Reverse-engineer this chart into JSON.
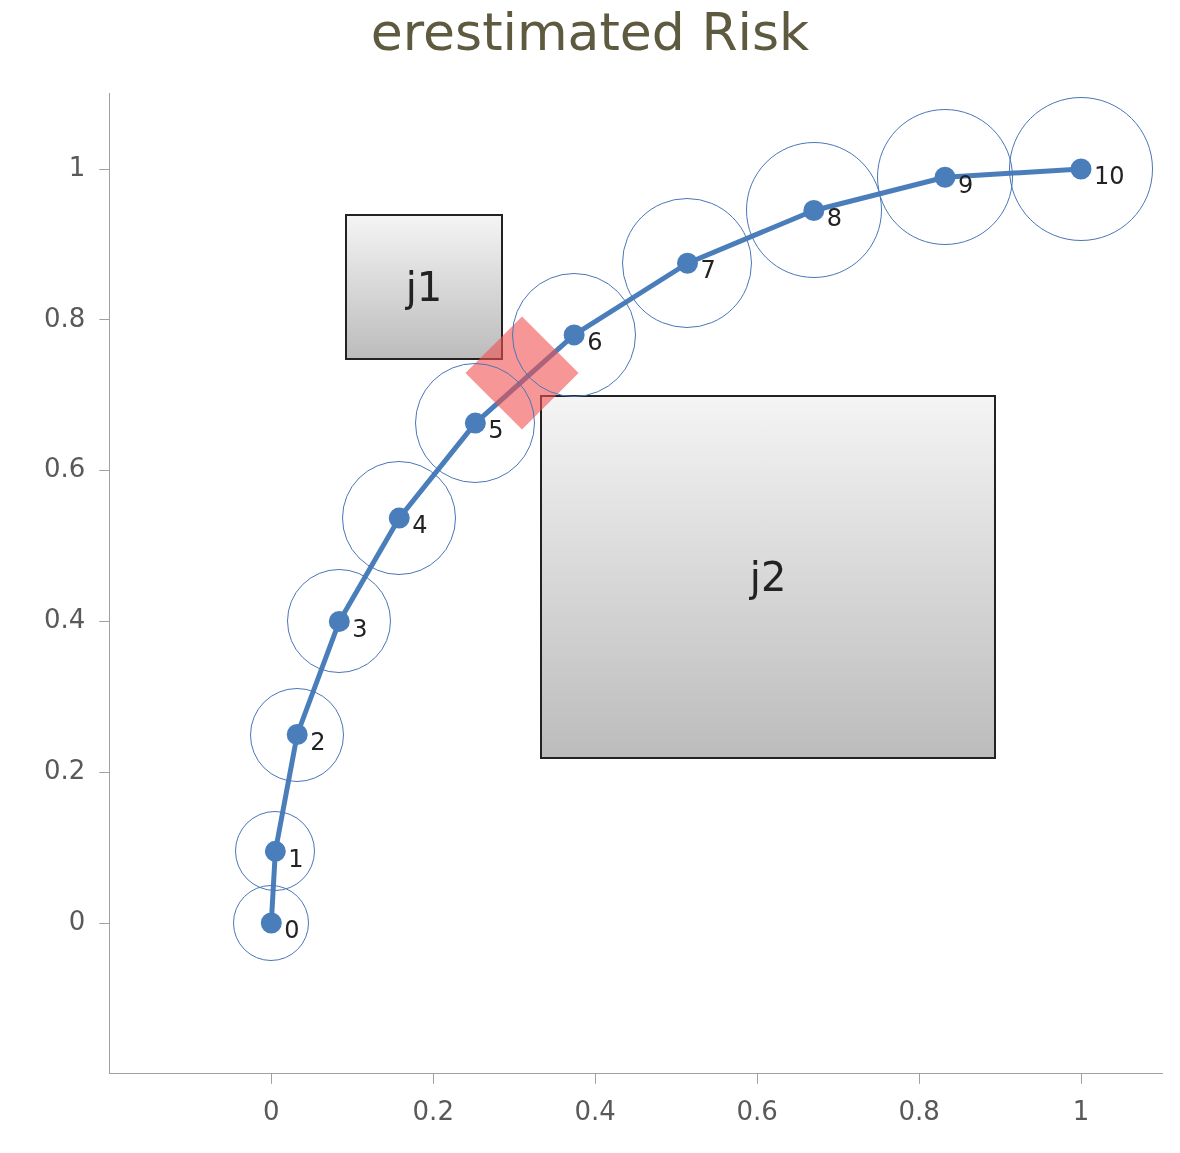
{
  "chart_data": {
    "type": "line",
    "title": "erestimated Risk",
    "x": [
      0,
      0.005,
      0.032,
      0.084,
      0.158,
      0.252,
      0.374,
      0.514,
      0.67,
      0.832,
      1.0
    ],
    "series": [
      {
        "color": "#4a7ebb",
        "values": [
          0,
          0.095,
          0.25,
          0.4,
          0.537,
          0.663,
          0.78,
          0.875,
          0.945,
          0.989,
          1.0
        ],
        "marker": "circle"
      }
    ],
    "xlim": [
      -0.2,
      1.1
    ],
    "ylim": [
      -0.2,
      1.1
    ],
    "xticks": [
      0,
      0.2,
      0.4,
      0.6,
      0.8,
      1
    ],
    "yticks": [
      0,
      0.2,
      0.4,
      0.6,
      0.8,
      1
    ],
    "grid": false,
    "legend": false,
    "annotations": [
      {
        "text": "0",
        "x": 0,
        "y": 0
      },
      {
        "text": "1",
        "x": 0.005,
        "y": 0.095
      },
      {
        "text": "2",
        "x": 0.032,
        "y": 0.25
      },
      {
        "text": "3",
        "x": 0.084,
        "y": 0.4
      },
      {
        "text": "4",
        "x": 0.158,
        "y": 0.537
      },
      {
        "text": "5",
        "x": 0.252,
        "y": 0.663
      },
      {
        "text": "6",
        "x": 0.374,
        "y": 0.78
      },
      {
        "text": "7",
        "x": 0.514,
        "y": 0.875
      },
      {
        "text": "8",
        "x": 0.67,
        "y": 0.945
      },
      {
        "text": "9",
        "x": 0.832,
        "y": 0.989
      },
      {
        "text": "10",
        "x": 1.0,
        "y": 1.0
      },
      "j1",
      "j2"
    ]
  }
}
